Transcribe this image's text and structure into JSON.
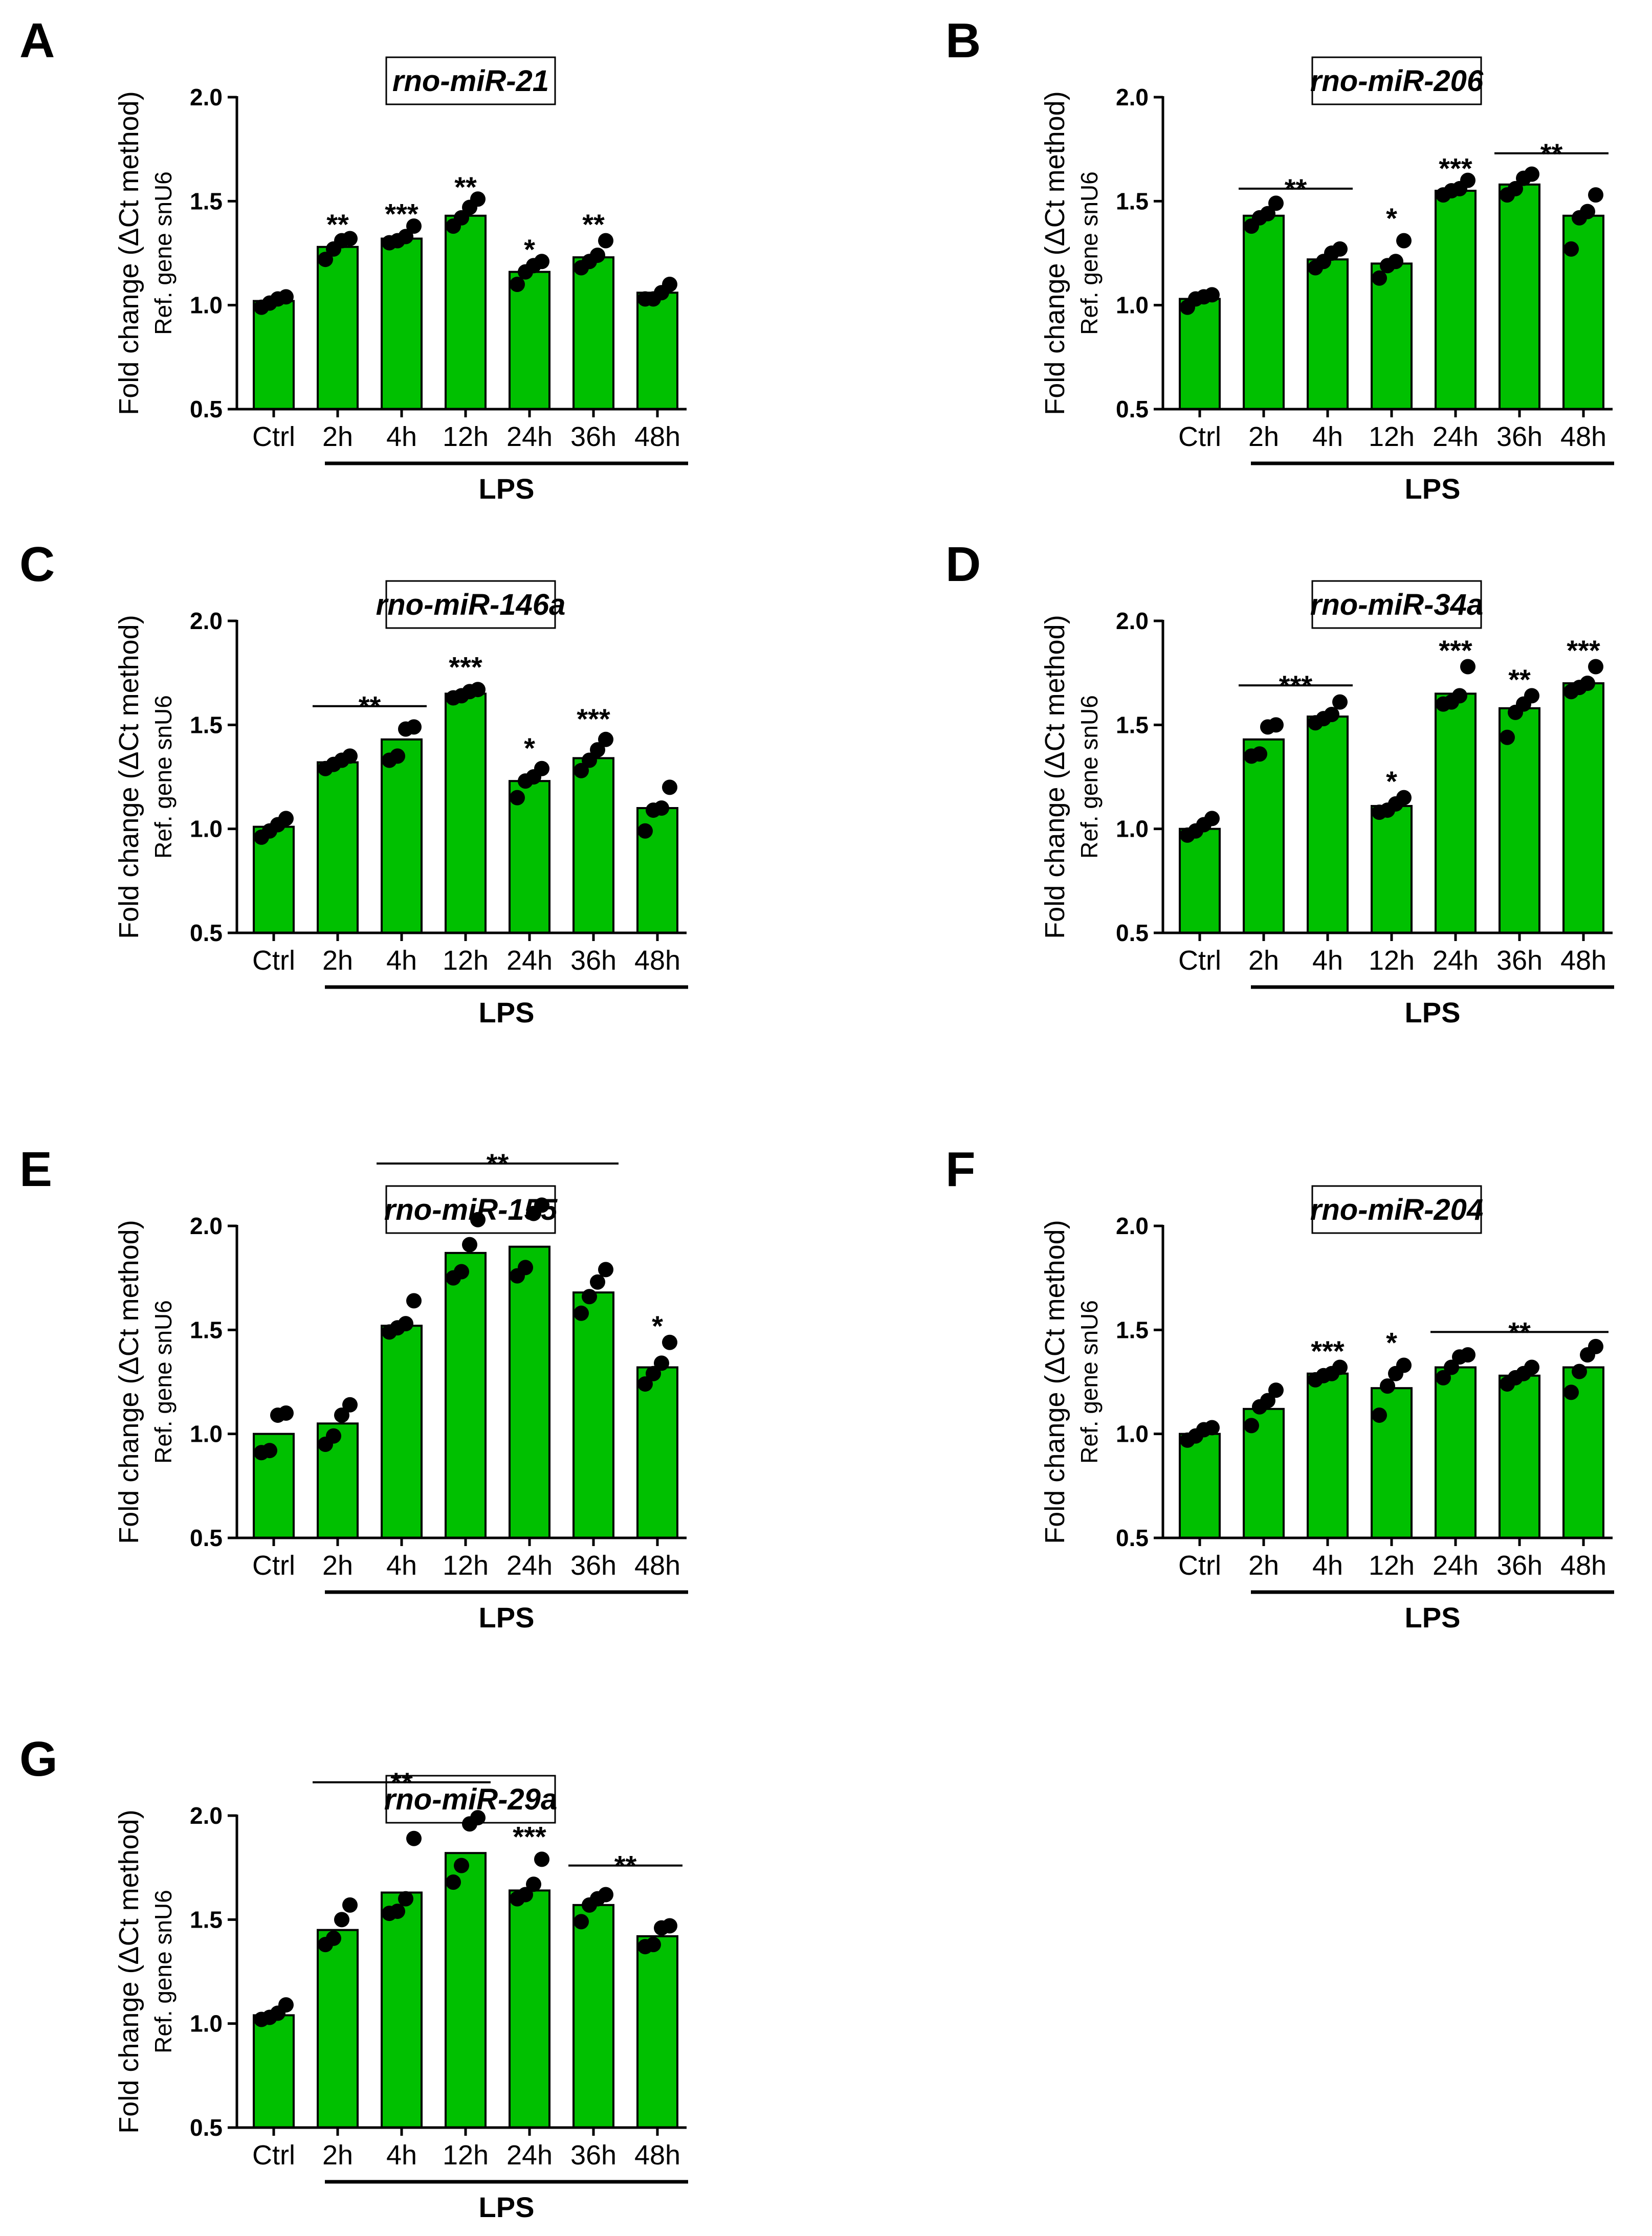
{
  "chart_data": [
    {
      "type": "bar",
      "panel": "A",
      "title": "rno-miR-21",
      "ylabel": "Fold change (ΔCt method)",
      "ylabel_sub": "Ref. gene snU6",
      "categories": [
        "Ctrl",
        "2h",
        "4h",
        "12h",
        "24h",
        "36h",
        "48h"
      ],
      "group_label": "LPS",
      "ylim": [
        0.5,
        2.0
      ],
      "yticks": [
        "0.5",
        "1.0",
        "1.5",
        "2.0"
      ],
      "values": [
        1.02,
        1.28,
        1.32,
        1.43,
        1.16,
        1.23,
        1.06
      ],
      "points": [
        [
          0.99,
          1.01,
          1.03,
          1.04
        ],
        [
          1.22,
          1.27,
          1.31,
          1.32
        ],
        [
          1.3,
          1.31,
          1.33,
          1.38
        ],
        [
          1.38,
          1.42,
          1.47,
          1.51
        ],
        [
          1.1,
          1.16,
          1.19,
          1.21
        ],
        [
          1.18,
          1.21,
          1.24,
          1.31
        ],
        [
          1.03,
          1.03,
          1.06,
          1.1
        ]
      ],
      "colors": {
        "bar": "#00c000",
        "edge": "#000000",
        "point": "#000000"
      },
      "annotations": [
        {
          "text": "**",
          "cat": 1,
          "y": 1.39
        },
        {
          "text": "***",
          "cat": 2,
          "y": 1.44
        },
        {
          "text": "**",
          "cat": 3,
          "y": 1.57
        },
        {
          "text": "*",
          "cat": 4,
          "y": 1.27
        },
        {
          "text": "**",
          "cat": 5,
          "y": 1.39
        }
      ]
    },
    {
      "type": "bar",
      "panel": "B",
      "title": "rno-miR-206",
      "ylabel": "Fold change (ΔCt method)",
      "ylabel_sub": "Ref. gene snU6",
      "categories": [
        "Ctrl",
        "2h",
        "4h",
        "12h",
        "24h",
        "36h",
        "48h"
      ],
      "group_label": "LPS",
      "ylim": [
        0.5,
        2.0
      ],
      "yticks": [
        "0.5",
        "1.0",
        "1.5",
        "2.0"
      ],
      "values": [
        1.03,
        1.43,
        1.22,
        1.2,
        1.55,
        1.58,
        1.43
      ],
      "points": [
        [
          0.99,
          1.03,
          1.04,
          1.05
        ],
        [
          1.38,
          1.42,
          1.44,
          1.49
        ],
        [
          1.18,
          1.21,
          1.25,
          1.27
        ],
        [
          1.13,
          1.19,
          1.21,
          1.31
        ],
        [
          1.53,
          1.55,
          1.56,
          1.6
        ],
        [
          1.53,
          1.56,
          1.61,
          1.63
        ],
        [
          1.27,
          1.42,
          1.45,
          1.53
        ]
      ],
      "colors": {
        "bar": "#00c000",
        "edge": "#000000",
        "point": "#000000"
      },
      "annotations": [
        {
          "text": "**",
          "span": [
            1,
            2
          ],
          "y": 1.56
        },
        {
          "text": "*",
          "cat": 3,
          "y": 1.42
        },
        {
          "text": "***",
          "cat": 4,
          "y": 1.66
        },
        {
          "text": "**",
          "span": [
            5,
            6
          ],
          "y": 1.73
        }
      ]
    },
    {
      "type": "bar",
      "panel": "C",
      "title": "rno-miR-146a",
      "ylabel": "Fold change (ΔCt method)",
      "ylabel_sub": "Ref. gene snU6",
      "categories": [
        "Ctrl",
        "2h",
        "4h",
        "12h",
        "24h",
        "36h",
        "48h"
      ],
      "group_label": "LPS",
      "ylim": [
        0.5,
        2.0
      ],
      "yticks": [
        "0.5",
        "1.0",
        "1.5",
        "2.0"
      ],
      "values": [
        1.01,
        1.32,
        1.43,
        1.65,
        1.23,
        1.34,
        1.1
      ],
      "points": [
        [
          0.96,
          0.99,
          1.02,
          1.05
        ],
        [
          1.29,
          1.31,
          1.33,
          1.35
        ],
        [
          1.33,
          1.35,
          1.48,
          1.49
        ],
        [
          1.63,
          1.64,
          1.66,
          1.67
        ],
        [
          1.15,
          1.23,
          1.25,
          1.29
        ],
        [
          1.28,
          1.33,
          1.38,
          1.43
        ],
        [
          0.99,
          1.09,
          1.1,
          1.2
        ]
      ],
      "colors": {
        "bar": "#00c000",
        "edge": "#000000",
        "point": "#000000"
      },
      "annotations": [
        {
          "text": "**",
          "span": [
            1,
            2
          ],
          "y": 1.59
        },
        {
          "text": "***",
          "cat": 3,
          "y": 1.78
        },
        {
          "text": "*",
          "cat": 4,
          "y": 1.39
        },
        {
          "text": "***",
          "cat": 5,
          "y": 1.53
        }
      ]
    },
    {
      "type": "bar",
      "panel": "D",
      "title": "rno-miR-34a",
      "ylabel": "Fold change (ΔCt method)",
      "ylabel_sub": "Ref. gene snU6",
      "categories": [
        "Ctrl",
        "2h",
        "4h",
        "12h",
        "24h",
        "36h",
        "48h"
      ],
      "group_label": "LPS",
      "ylim": [
        0.5,
        2.0
      ],
      "yticks": [
        "0.5",
        "1.0",
        "1.5",
        "2.0"
      ],
      "values": [
        1.0,
        1.43,
        1.54,
        1.11,
        1.65,
        1.58,
        1.7
      ],
      "points": [
        [
          0.97,
          0.99,
          1.02,
          1.05
        ],
        [
          1.35,
          1.36,
          1.49,
          1.5
        ],
        [
          1.51,
          1.53,
          1.55,
          1.61
        ],
        [
          1.08,
          1.09,
          1.12,
          1.15
        ],
        [
          1.6,
          1.61,
          1.64,
          1.78
        ],
        [
          1.44,
          1.56,
          1.6,
          1.64
        ],
        [
          1.66,
          1.68,
          1.7,
          1.78
        ]
      ],
      "colors": {
        "bar": "#00c000",
        "edge": "#000000",
        "point": "#000000"
      },
      "annotations": [
        {
          "text": "***",
          "span": [
            1,
            2
          ],
          "y": 1.69
        },
        {
          "text": "*",
          "cat": 3,
          "y": 1.23
        },
        {
          "text": "***",
          "cat": 4,
          "y": 1.86
        },
        {
          "text": "**",
          "cat": 5,
          "y": 1.72
        },
        {
          "text": "***",
          "cat": 6,
          "y": 1.86
        }
      ]
    },
    {
      "type": "bar",
      "panel": "E",
      "title": "rno-miR-155",
      "ylabel": "Fold change (ΔCt method)",
      "ylabel_sub": "Ref. gene snU6",
      "categories": [
        "Ctrl",
        "2h",
        "4h",
        "12h",
        "24h",
        "36h",
        "48h"
      ],
      "group_label": "LPS",
      "ylim": [
        0.5,
        2.0
      ],
      "yticks": [
        "0.5",
        "1.0",
        "1.5",
        "2.0"
      ],
      "values": [
        1.0,
        1.05,
        1.52,
        1.87,
        1.9,
        1.68,
        1.32
      ],
      "points": [
        [
          0.91,
          0.92,
          1.09,
          1.1
        ],
        [
          0.95,
          0.99,
          1.09,
          1.14
        ],
        [
          1.49,
          1.51,
          1.53,
          1.64
        ],
        [
          1.75,
          1.78,
          1.91,
          2.03
        ],
        [
          1.76,
          1.8,
          2.06,
          2.1
        ],
        [
          1.58,
          1.66,
          1.73,
          1.79
        ],
        [
          1.24,
          1.29,
          1.34,
          1.44
        ]
      ],
      "colors": {
        "bar": "#00c000",
        "edge": "#000000",
        "point": "#000000"
      },
      "annotations": [
        {
          "text": "**",
          "span": [
            2,
            5
          ],
          "y": 2.3
        },
        {
          "text": "*",
          "cat": 6,
          "y": 1.52
        }
      ]
    },
    {
      "type": "bar",
      "panel": "F",
      "title": "rno-miR-204",
      "ylabel": "Fold change (ΔCt method)",
      "ylabel_sub": "Ref. gene snU6",
      "categories": [
        "Ctrl",
        "2h",
        "4h",
        "12h",
        "24h",
        "36h",
        "48h"
      ],
      "group_label": "LPS",
      "ylim": [
        0.5,
        2.0
      ],
      "yticks": [
        "0.5",
        "1.0",
        "1.5",
        "2.0"
      ],
      "values": [
        1.0,
        1.12,
        1.29,
        1.22,
        1.32,
        1.28,
        1.32
      ],
      "points": [
        [
          0.97,
          0.99,
          1.02,
          1.03
        ],
        [
          1.04,
          1.13,
          1.16,
          1.21
        ],
        [
          1.26,
          1.28,
          1.29,
          1.32
        ],
        [
          1.09,
          1.23,
          1.29,
          1.33
        ],
        [
          1.27,
          1.32,
          1.37,
          1.38
        ],
        [
          1.24,
          1.27,
          1.29,
          1.32
        ],
        [
          1.2,
          1.3,
          1.38,
          1.42
        ]
      ],
      "colors": {
        "bar": "#00c000",
        "edge": "#000000",
        "point": "#000000"
      },
      "annotations": [
        {
          "text": "***",
          "cat": 2,
          "y": 1.4
        },
        {
          "text": "*",
          "cat": 3,
          "y": 1.44
        },
        {
          "text": "**",
          "span": [
            4,
            6
          ],
          "y": 1.49
        }
      ]
    },
    {
      "type": "bar",
      "panel": "G",
      "title": "rno-miR-29a",
      "ylabel": "Fold change (ΔCt method)",
      "ylabel_sub": "Ref. gene snU6",
      "categories": [
        "Ctrl",
        "2h",
        "4h",
        "12h",
        "24h",
        "36h",
        "48h"
      ],
      "group_label": "LPS",
      "ylim": [
        0.5,
        2.0
      ],
      "yticks": [
        "0.5",
        "1.0",
        "1.5",
        "2.0"
      ],
      "values": [
        1.04,
        1.45,
        1.63,
        1.82,
        1.64,
        1.57,
        1.42
      ],
      "points": [
        [
          1.02,
          1.03,
          1.05,
          1.09
        ],
        [
          1.38,
          1.41,
          1.5,
          1.57
        ],
        [
          1.53,
          1.54,
          1.6,
          1.89
        ],
        [
          1.68,
          1.76,
          1.96,
          1.99
        ],
        [
          1.6,
          1.62,
          1.67,
          1.79
        ],
        [
          1.49,
          1.57,
          1.6,
          1.62
        ],
        [
          1.37,
          1.38,
          1.46,
          1.47
        ]
      ],
      "colors": {
        "bar": "#00c000",
        "edge": "#000000",
        "point": "#000000"
      },
      "annotations": [
        {
          "text": "**",
          "span": [
            1,
            3
          ],
          "y": 2.16
        },
        {
          "text": "***",
          "cat": 4,
          "y": 1.9
        },
        {
          "text": "**",
          "span": [
            5,
            6
          ],
          "y": 1.76
        }
      ]
    }
  ]
}
